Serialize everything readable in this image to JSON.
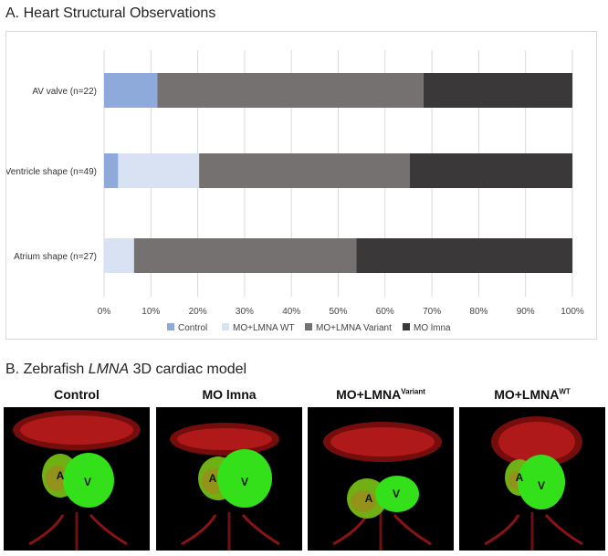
{
  "section_a_title": "A. Heart Structural Observations",
  "section_b_title_prefix": "B. Zebrafish ",
  "section_b_title_gene": "LMNA",
  "section_b_title_suffix": " 3D cardiac model",
  "chart_data": {
    "type": "bar",
    "orientation": "horizontal",
    "stacked": "percent",
    "categories": [
      "AV valve (n=22)",
      "Ventricle shape (n=49)",
      "Atrium shape (n=27)"
    ],
    "series": [
      {
        "name": "Control",
        "color": "#8eaadb",
        "values": [
          11.4,
          3.0,
          0
        ]
      },
      {
        "name": "MO+LMNA WT",
        "color": "#d9e2f3",
        "values": [
          0,
          17.3,
          6.4
        ]
      },
      {
        "name": "MO+LMNA Variant",
        "color": "#767171",
        "values": [
          56.8,
          45.0,
          47.5
        ]
      },
      {
        "name": "MO lmna",
        "color": "#3a3838",
        "values": [
          31.8,
          34.7,
          46.1
        ]
      }
    ],
    "xlim": [
      0,
      100
    ],
    "xticks": [
      "0%",
      "10%",
      "20%",
      "30%",
      "40%",
      "50%",
      "60%",
      "70%",
      "80%",
      "90%",
      "100%"
    ],
    "grid": true,
    "legend_position": "bottom"
  },
  "panels": [
    {
      "label": "Control",
      "sup": "",
      "a_label": "A",
      "v_label": "V"
    },
    {
      "label": "MO lmna",
      "sup": "",
      "a_label": "A",
      "v_label": "V"
    },
    {
      "label": "MO+LMNA",
      "sup": "Variant",
      "a_label": "A",
      "v_label": "V"
    },
    {
      "label": "MO+LMNA",
      "sup": "WT",
      "a_label": "A",
      "v_label": "V"
    }
  ]
}
